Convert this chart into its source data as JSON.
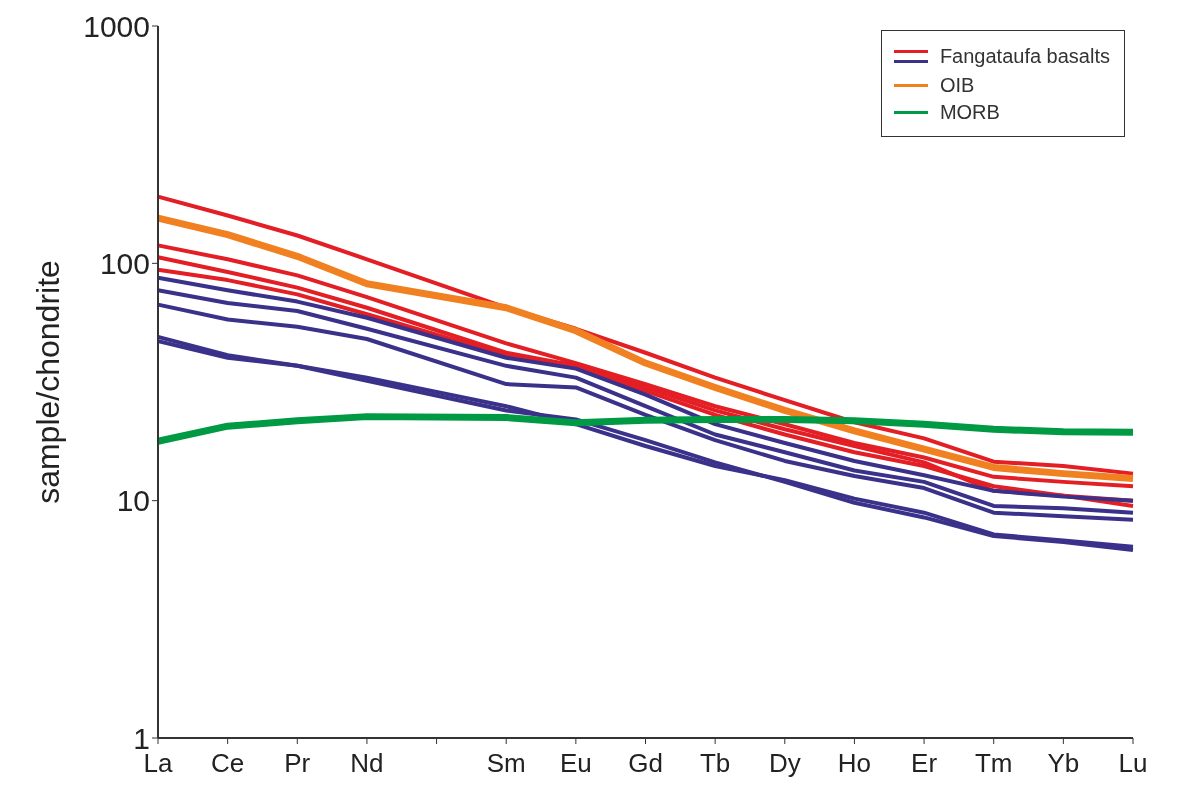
{
  "chart_data": {
    "type": "line",
    "ylabel": "sample/chondrite",
    "categories": [
      "La",
      "Ce",
      "Pr",
      "Nd",
      null,
      "Sm",
      "Eu",
      "Gd",
      "Tb",
      "Dy",
      "Ho",
      "Er",
      "Tm",
      "Yb",
      "Lu"
    ],
    "log": true,
    "ylim": [
      1,
      1000
    ],
    "yticks": [
      1,
      10,
      100,
      1000
    ],
    "legend": "top right",
    "marker": "none",
    "line_style": "solid",
    "series": [
      {
        "name": "Fangataufa basalts",
        "color": "#e31e24",
        "values": [
          191,
          159,
          131,
          104,
          null,
          65,
          53,
          42,
          33,
          26.5,
          21.4,
          18.3,
          14.6,
          14,
          13
        ]
      },
      {
        "color": "#e31e24",
        "values": [
          119,
          104,
          89,
          72,
          null,
          46,
          38,
          31,
          25,
          21,
          17.5,
          15.2,
          12.6,
          12,
          11.5
        ]
      },
      {
        "color": "#e31e24",
        "values": [
          106,
          92,
          79,
          65,
          null,
          42,
          37,
          30,
          24,
          20,
          17,
          14.5,
          11,
          10.5,
          10
        ]
      },
      {
        "color": "#e31e24",
        "values": [
          94,
          85,
          74,
          61,
          null,
          41,
          37,
          29,
          23,
          19,
          16,
          14,
          11.5,
          10.5,
          9.5
        ]
      },
      {
        "color": "#3a328a",
        "values": [
          87,
          77,
          69,
          59,
          null,
          40,
          36,
          28,
          21,
          17.5,
          14.7,
          12.8,
          11,
          10.4,
          10
        ]
      },
      {
        "color": "#3a328a",
        "values": [
          77,
          68,
          63,
          53,
          null,
          37,
          33,
          25,
          19,
          16,
          13.4,
          12,
          9.5,
          9.3,
          8.9
        ]
      },
      {
        "color": "#3a328a",
        "values": [
          67,
          58,
          54,
          48,
          null,
          31,
          30,
          23,
          18,
          14.7,
          12.7,
          11.3,
          8.9,
          8.6,
          8.3
        ]
      },
      {
        "color": "#3a328a",
        "values": [
          49,
          41,
          37,
          33,
          null,
          25,
          21,
          17,
          14,
          12.2,
          10.2,
          8.9,
          7.2,
          6.8,
          6.4
        ]
      },
      {
        "color": "#3a328a",
        "values": [
          47,
          40,
          37,
          32,
          null,
          24,
          22,
          18,
          14.5,
          12,
          9.8,
          8.5,
          7.1,
          6.7,
          6.2
        ]
      },
      {
        "name": "OIB",
        "color": "#f08020",
        "values": [
          155,
          132,
          107,
          82,
          null,
          65,
          52,
          38,
          30,
          24,
          19.7,
          16.5,
          13.8,
          13,
          12.4
        ]
      },
      {
        "name": "MORB",
        "color": "#009944",
        "values": [
          17.8,
          20.6,
          21.7,
          22.6,
          null,
          22.4,
          21.3,
          21.8,
          22,
          22,
          21.7,
          21,
          20,
          19.5,
          19.4
        ]
      }
    ]
  }
}
